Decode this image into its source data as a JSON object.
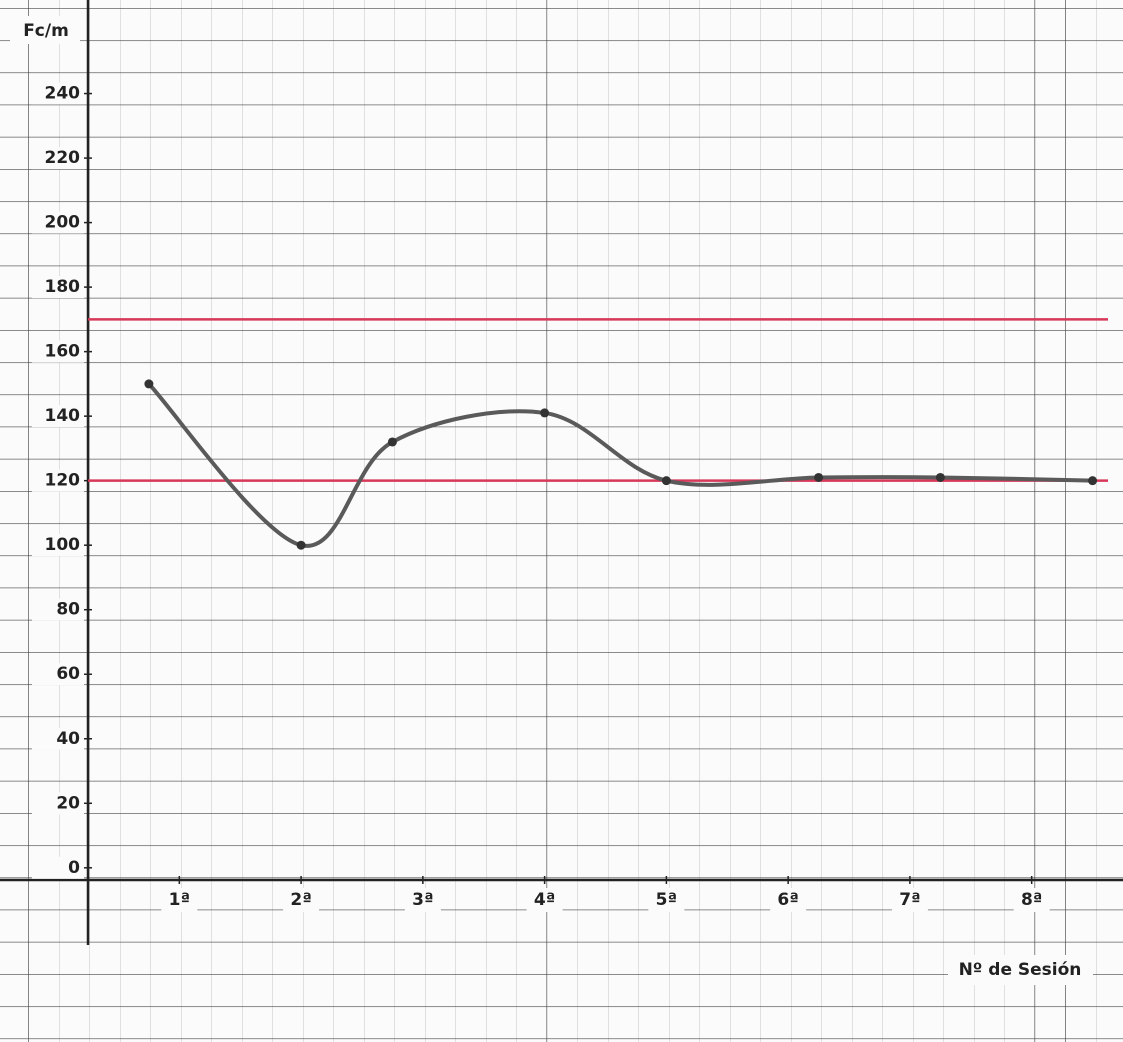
{
  "chart_data": {
    "type": "line",
    "y_label": "Fc/m",
    "x_label": "Nº de Sesión",
    "x": [
      0.75,
      2,
      2.75,
      4,
      5,
      6.25,
      7.25,
      8.5
    ],
    "series": [
      {
        "color": "#5a5a5a",
        "values": [
          150,
          100,
          132,
          141,
          120,
          121,
          121,
          120
        ]
      }
    ],
    "reference_lines": [
      {
        "value": 170,
        "color": "#d8385a"
      },
      {
        "value": 120,
        "color": "#d8385a"
      }
    ],
    "xlim": [
      0.25,
      8.75
    ],
    "xticks": [
      {
        "value": 1,
        "label": "1ª"
      },
      {
        "value": 2,
        "label": "2ª"
      },
      {
        "value": 3,
        "label": "3ª"
      },
      {
        "value": 4,
        "label": "4ª"
      },
      {
        "value": 5,
        "label": "5ª"
      },
      {
        "value": 6,
        "label": "6ª"
      },
      {
        "value": 7,
        "label": "7ª"
      },
      {
        "value": 8,
        "label": "8ª"
      }
    ],
    "ylim": [
      -54,
      269
    ],
    "yticks": [
      0,
      20,
      40,
      60,
      80,
      100,
      120,
      140,
      160,
      180,
      200,
      220,
      240
    ]
  }
}
